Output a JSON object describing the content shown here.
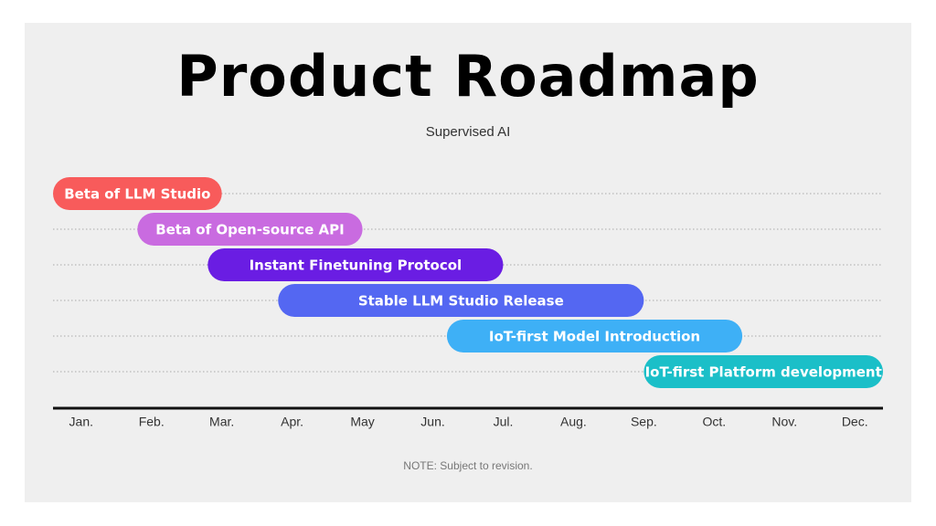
{
  "chart_data": {
    "type": "gantt",
    "title": "Product Roadmap",
    "subtitle": "Supervised AI",
    "note": "NOTE: Subject to revision.",
    "categories": [
      "Jan.",
      "Feb.",
      "Mar.",
      "Apr.",
      "May",
      "Jun.",
      "Jul.",
      "Aug.",
      "Sep.",
      "Oct.",
      "Nov.",
      "Dec."
    ],
    "xlim": [
      -0.4,
      11.4
    ],
    "tasks": [
      {
        "name": "Beta of LLM Studio",
        "start": -0.4,
        "end": 2.0,
        "color": "#f85b5b"
      },
      {
        "name": "Beta of Open-source API",
        "start": 0.8,
        "end": 4.0,
        "color": "#c96be0"
      },
      {
        "name": "Instant Finetuning Protocol",
        "start": 1.8,
        "end": 6.0,
        "color": "#6a1de3"
      },
      {
        "name": "Stable LLM Studio Release",
        "start": 2.8,
        "end": 8.0,
        "color": "#5467f2"
      },
      {
        "name": "IoT-first Model Introduction",
        "start": 5.2,
        "end": 9.4,
        "color": "#3eb0f6"
      },
      {
        "name": "IoT-first Platform development",
        "start": 8.0,
        "end": 11.4,
        "color": "#1bbfc8"
      }
    ]
  }
}
